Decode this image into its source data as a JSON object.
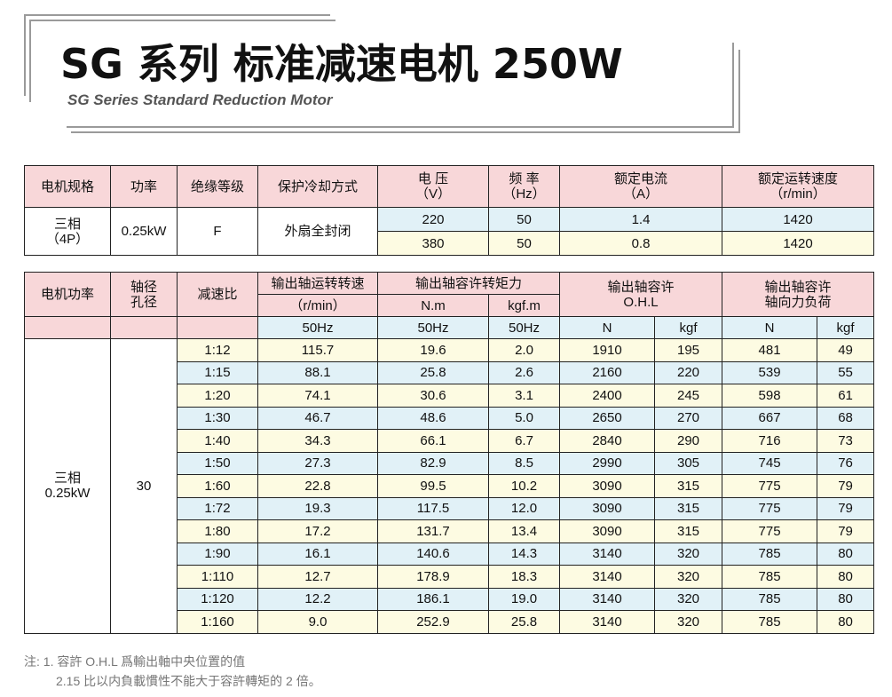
{
  "header": {
    "title": "SG 系列 标准减速电机 250W",
    "subtitle": "SG Series Standard Reduction Motor"
  },
  "spec_table": {
    "headers": [
      "电机规格",
      "功率",
      "绝缘等级",
      "保护冷却方式",
      "电 压\n（V）",
      "频 率\n（Hz）",
      "额定电流\n（A）",
      "额定运转速度\n（r/min）"
    ],
    "spec": "三相\n（4P）",
    "power": "0.25kW",
    "insulation": "F",
    "cooling": "外扇全封闭",
    "rows": [
      [
        "220",
        "50",
        "1.4",
        "1420"
      ],
      [
        "380",
        "50",
        "0.8",
        "1420"
      ]
    ]
  },
  "perf_table": {
    "h_motor_power": "电机功率",
    "h_shaft": "轴径\n孔径",
    "h_ratio": "减速比",
    "h_speed": "输出轴运转转速",
    "h_speed_unit": "（r/min）",
    "h_torque": "输出轴容许转矩力",
    "h_nm": "N.m",
    "h_kgfm": "kgf.m",
    "h_ohl": "输出轴容许\nO.H.L",
    "h_axial": "输出轴容许\n轴向力负荷",
    "sub": [
      "50Hz",
      "50Hz",
      "50Hz",
      "N",
      "kgf",
      "N",
      "kgf"
    ],
    "motor_power": "三相\n0.25kW",
    "shaft": "30",
    "rows": [
      [
        "1:12",
        "115.7",
        "19.6",
        "2.0",
        "1910",
        "195",
        "481",
        "49"
      ],
      [
        "1:15",
        "88.1",
        "25.8",
        "2.6",
        "2160",
        "220",
        "539",
        "55"
      ],
      [
        "1:20",
        "74.1",
        "30.6",
        "3.1",
        "2400",
        "245",
        "598",
        "61"
      ],
      [
        "1:30",
        "46.7",
        "48.6",
        "5.0",
        "2650",
        "270",
        "667",
        "68"
      ],
      [
        "1:40",
        "34.3",
        "66.1",
        "6.7",
        "2840",
        "290",
        "716",
        "73"
      ],
      [
        "1:50",
        "27.3",
        "82.9",
        "8.5",
        "2990",
        "305",
        "745",
        "76"
      ],
      [
        "1:60",
        "22.8",
        "99.5",
        "10.2",
        "3090",
        "315",
        "775",
        "79"
      ],
      [
        "1:72",
        "19.3",
        "117.5",
        "12.0",
        "3090",
        "315",
        "775",
        "79"
      ],
      [
        "1:80",
        "17.2",
        "131.7",
        "13.4",
        "3090",
        "315",
        "775",
        "79"
      ],
      [
        "1:90",
        "16.1",
        "140.6",
        "14.3",
        "3140",
        "320",
        "785",
        "80"
      ],
      [
        "1:110",
        "12.7",
        "178.9",
        "18.3",
        "3140",
        "320",
        "785",
        "80"
      ],
      [
        "1:120",
        "12.2",
        "186.1",
        "19.0",
        "3140",
        "320",
        "785",
        "80"
      ],
      [
        "1:160",
        "9.0",
        "252.9",
        "25.8",
        "3140",
        "320",
        "785",
        "80"
      ]
    ]
  },
  "notes": [
    "注:  1. 容許 O.H.L 爲輸出軸中央位置的值",
    "2.15 比以内負載慣性不能大于容許轉矩的 2 倍。"
  ],
  "colors": {
    "header_bg": "#f8d7d9",
    "blue_row": "#e1f1f7",
    "yellow_row": "#fdfbe2"
  }
}
